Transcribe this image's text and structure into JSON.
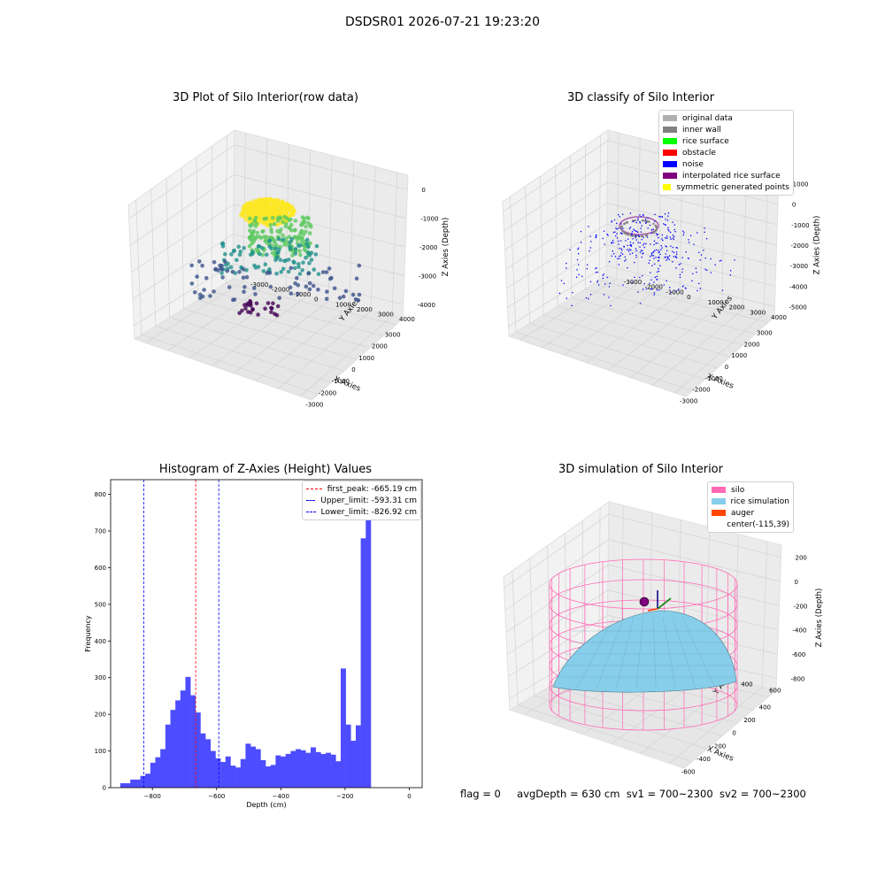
{
  "figure_title": "DSDSR01 2026-07-21 19:23:20",
  "footer": {
    "flag": "flag = 0",
    "avg_depth": "avgDepth = 630 cm",
    "sv1": "sv1 = 700~2300",
    "sv2": "sv2 = 700~2300"
  },
  "chart_data": [
    {
      "type": "scatter",
      "title": "3D Plot of Silo Interior(row data)",
      "xlabel": "X Axies",
      "ylabel": "Y Axies",
      "zlabel": "Z Axies (Depth)",
      "x_ticks": [
        "-3000",
        "-2000",
        "-1000",
        "0",
        "1000",
        "2000",
        "3000"
      ],
      "y_ticks": [
        "-3000",
        "-2000",
        "-1000",
        "0",
        "1000",
        "2000",
        "3000",
        "4000"
      ],
      "z_ticks": [
        "-4000",
        "-3000",
        "-2000",
        "-1000",
        "0"
      ],
      "colormap": [
        "#440154",
        "#3b528b",
        "#21918c",
        "#5ec962",
        "#fde725"
      ]
    },
    {
      "type": "scatter",
      "title": "3D classify of Silo Interior",
      "xlabel": "X Axies",
      "ylabel": "Y Axies",
      "zlabel": "Z Axies (Depth)",
      "x_ticks": [
        "-3000",
        "-2000",
        "-1000",
        "0",
        "1000",
        "2000",
        "3000"
      ],
      "y_ticks": [
        "-3000",
        "-2000",
        "-1000",
        "0",
        "1000",
        "2000",
        "3000",
        "4000"
      ],
      "z_ticks": [
        "-5000",
        "-4000",
        "-3000",
        "-2000",
        "-1000",
        "0",
        "1000"
      ],
      "legend": [
        {
          "label": "original data",
          "color": "#b0b0b0"
        },
        {
          "label": "inner wall",
          "color": "#808080"
        },
        {
          "label": "rice surface",
          "color": "#00ff00"
        },
        {
          "label": "obstacle",
          "color": "#ff0000"
        },
        {
          "label": "noise",
          "color": "#0000ff"
        },
        {
          "label": "interpolated rice surface",
          "color": "#800080"
        },
        {
          "label": "symmetric generated points",
          "color": "#ffff00"
        }
      ]
    },
    {
      "type": "bar",
      "title": "Histogram of Z-Axies (Height) Values",
      "xlabel": "Depth (cm)",
      "ylabel": "Frequency",
      "xlim": [
        -930,
        40
      ],
      "ylim": [
        0,
        840
      ],
      "x_ticks": [
        -800,
        -600,
        -400,
        -200,
        0
      ],
      "y_ticks": [
        0,
        100,
        200,
        300,
        400,
        500,
        600,
        700,
        800
      ],
      "bin_start": -900,
      "bin_width": 15.6,
      "values": [
        12,
        12,
        22,
        22,
        32,
        38,
        68,
        83,
        105,
        172,
        212,
        238,
        265,
        302,
        252,
        205,
        148,
        132,
        100,
        80,
        70,
        85,
        60,
        55,
        78,
        120,
        112,
        105,
        75,
        58,
        62,
        88,
        85,
        92,
        100,
        105,
        102,
        95,
        110,
        97,
        92,
        95,
        90,
        72,
        325,
        172,
        128,
        170,
        680,
        795
      ],
      "bar_color": "#4d4dff",
      "lines": [
        {
          "label": "first_peak: -665.19 cm",
          "x": -665.19,
          "color": "#ff0000"
        },
        {
          "label": "Upper_limit: -593.31 cm",
          "x": -593.31,
          "color": "#0000ff"
        },
        {
          "label": "Lower_limit: -826.92 cm",
          "x": -826.92,
          "color": "#0000ff"
        }
      ]
    },
    {
      "type": "surface",
      "title": "3D simulation of Silo Interior",
      "xlabel": "X Axies",
      "ylabel": "Y Axies",
      "zlabel": "Z Axies (Depth)",
      "x_ticks": [
        "-600",
        "-400",
        "-200",
        "0",
        "200",
        "400"
      ],
      "y_ticks": [
        "-400",
        "-200",
        "0",
        "200",
        "400",
        "600"
      ],
      "z_ticks": [
        "-800",
        "-600",
        "-400",
        "-200",
        "0",
        "200"
      ],
      "legend": [
        {
          "label": "silo",
          "color": "#ff69b4"
        },
        {
          "label": "rice simulation",
          "color": "#87ceeb"
        },
        {
          "label": "auger",
          "color": "#ff4500"
        },
        {
          "label": "center(-115,39)",
          "color": ""
        }
      ]
    }
  ]
}
